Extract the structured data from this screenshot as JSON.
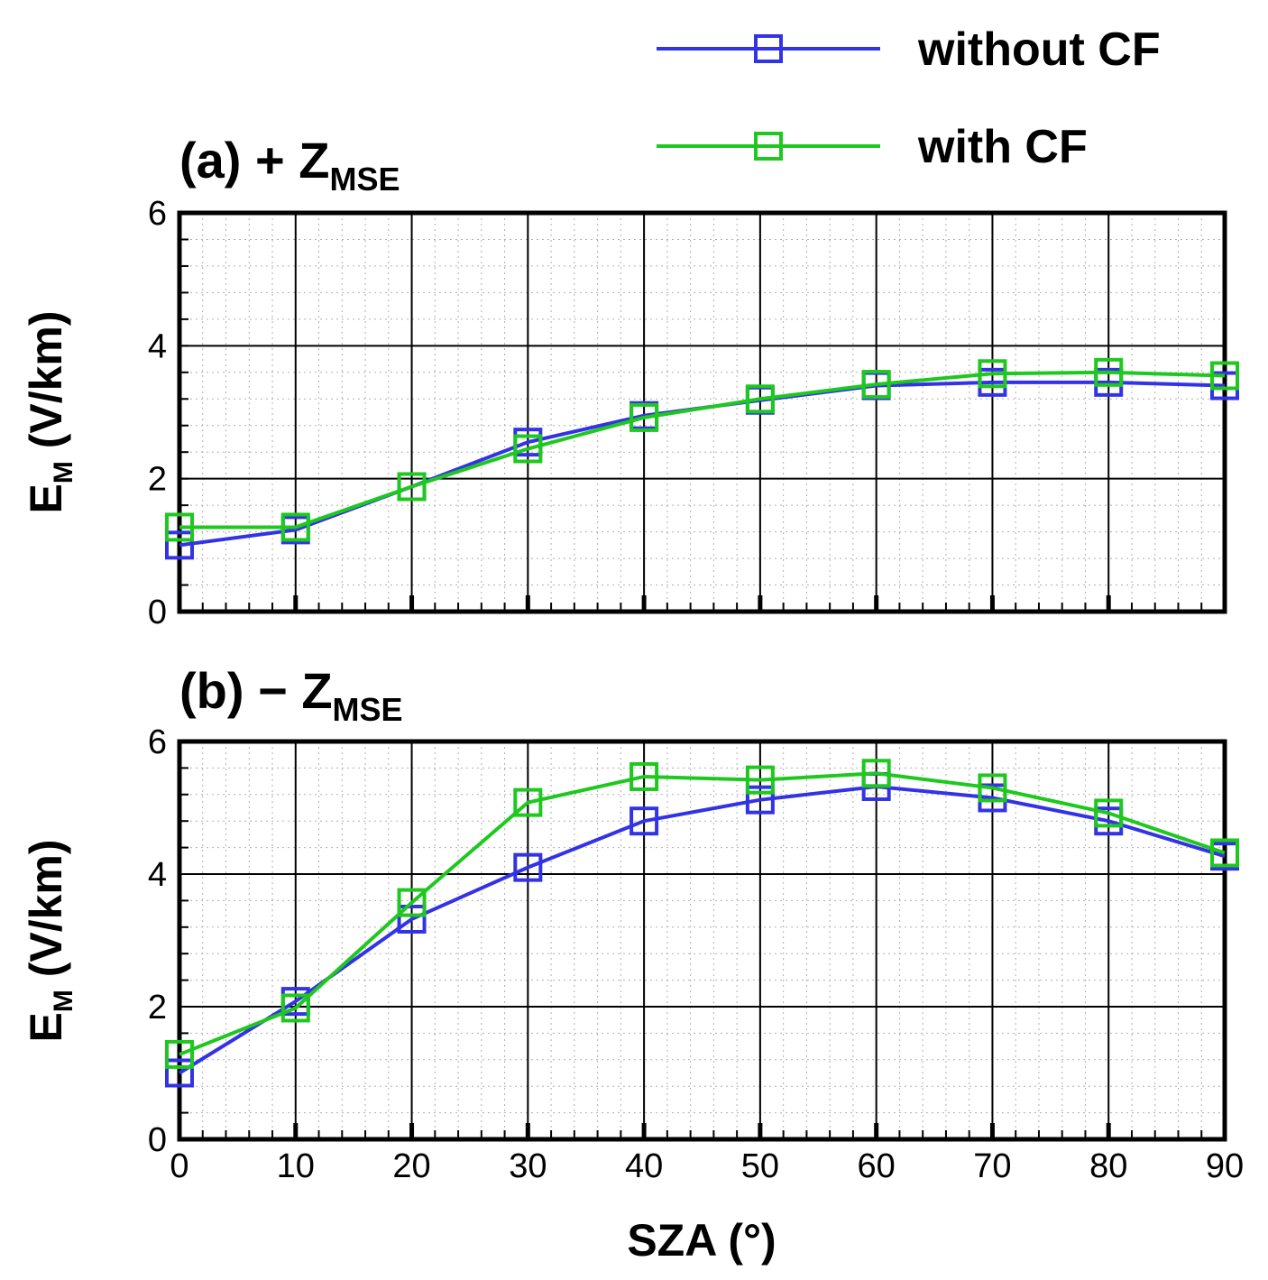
{
  "chart_data": [
    {
      "type": "line",
      "panel_id": "a",
      "title": {
        "prefix": "(a) + Z",
        "subscript": "MSE"
      },
      "xlabel": "SZA (°)",
      "ylabel": {
        "main": "E",
        "subscript": "M",
        "rest": " (V/km)"
      },
      "xlim": [
        0,
        90
      ],
      "ylim": [
        0,
        6
      ],
      "xticks": [
        0,
        10,
        20,
        30,
        40,
        50,
        60,
        70,
        80,
        90
      ],
      "yticks": [
        0,
        2,
        4,
        6
      ],
      "show_xtick_labels": false,
      "grid": true,
      "x": [
        0,
        10,
        20,
        30,
        40,
        50,
        60,
        70,
        80,
        90
      ],
      "series": [
        {
          "name": "without CF",
          "color": "#3333e6",
          "values": [
            1.0,
            1.23,
            1.88,
            2.55,
            2.95,
            3.18,
            3.4,
            3.45,
            3.45,
            3.4
          ]
        },
        {
          "name": "with CF",
          "color": "#1ec81e",
          "values": [
            1.27,
            1.27,
            1.88,
            2.45,
            2.92,
            3.2,
            3.42,
            3.58,
            3.6,
            3.55
          ]
        }
      ]
    },
    {
      "type": "line",
      "panel_id": "b",
      "title": {
        "prefix": "(b) − Z",
        "subscript": "MSE"
      },
      "xlabel": "SZA (°)",
      "ylabel": {
        "main": "E",
        "subscript": "M",
        "rest": " (V/km)"
      },
      "xlim": [
        0,
        90
      ],
      "ylim": [
        0,
        6
      ],
      "xticks": [
        0,
        10,
        20,
        30,
        40,
        50,
        60,
        70,
        80,
        90
      ],
      "yticks": [
        0,
        2,
        4,
        6
      ],
      "show_xtick_labels": true,
      "grid": true,
      "x": [
        0,
        10,
        20,
        30,
        40,
        50,
        60,
        70,
        80,
        90
      ],
      "series": [
        {
          "name": "without CF",
          "color": "#3333e6",
          "values": [
            1.0,
            2.08,
            3.32,
            4.1,
            4.8,
            5.12,
            5.32,
            5.15,
            4.8,
            4.27
          ]
        },
        {
          "name": "with CF",
          "color": "#1ec81e",
          "values": [
            1.28,
            1.98,
            3.57,
            5.08,
            5.47,
            5.42,
            5.52,
            5.3,
            4.92,
            4.32
          ]
        }
      ]
    }
  ],
  "legend": {
    "placement": "top-right",
    "entries": [
      {
        "label": "without CF",
        "color": "#3333e6"
      },
      {
        "label": "with CF",
        "color": "#1ec81e"
      }
    ]
  },
  "shared_xlabel": "SZA (°)"
}
